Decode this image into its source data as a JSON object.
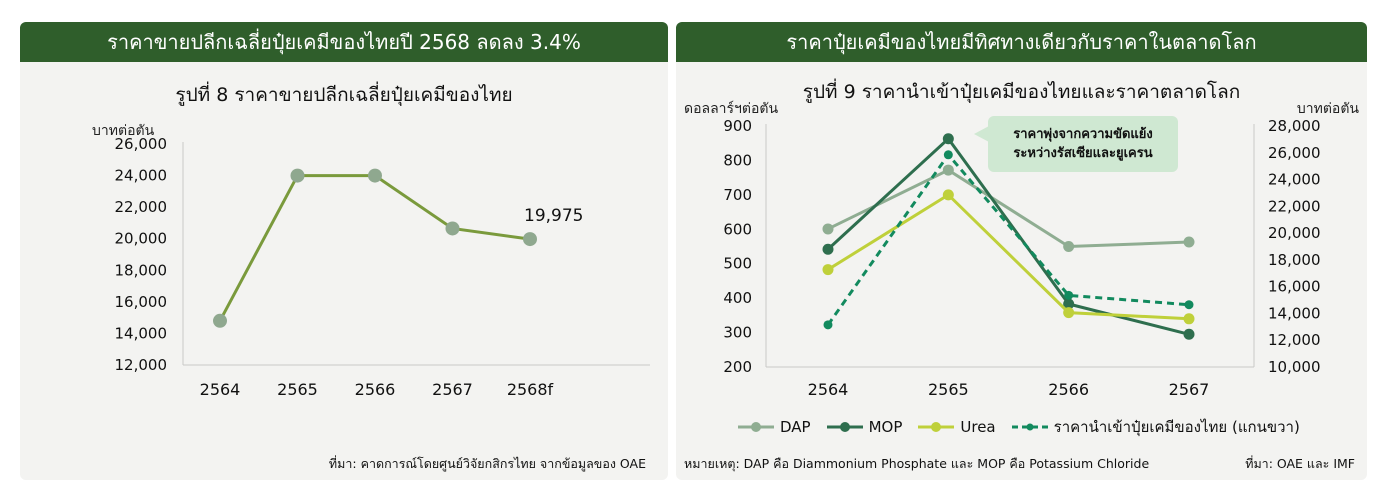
{
  "left_panel": {
    "header": "ราคาขายปลีกเฉลี่ยปุ๋ยเคมีของไทยปี 2568 ลดลง 3.4%",
    "source": "ที่มา: คาดการณ์โดยศูนย์วิจัยกสิกรไทย จากข้อมูลของ OAE"
  },
  "right_panel": {
    "header": "ราคาปุ๋ยเคมีของไทยมีทิศทางเดียวกับราคาในตลาดโลก",
    "callout": [
      "ราคาพุ่งจากความขัดแย้ง",
      "ระหว่างรัสเซียและยูเครน"
    ],
    "note": "หมายเหตุ: DAP คือ Diammonium Phosphate และ MOP คือ Potassium Chloride",
    "source": "ที่มา: OAE และ IMF"
  },
  "chart_data": [
    {
      "type": "line",
      "title": "รูปที่ 8 ราคาขายปลีกเฉลี่ยปุ๋ยเคมีของไทย",
      "ylabel": "บาทต่อตัน",
      "categories": [
        "2564",
        "2565",
        "2566",
        "2567",
        "2568f"
      ],
      "series": [
        {
          "values": [
            14800,
            24000,
            24000,
            20650,
            19975
          ],
          "color": "#7a9a3c",
          "marker_color": "#8fa88f"
        }
      ],
      "data_labels": [
        {
          "index": 4,
          "text": "19,975"
        }
      ],
      "ylim": [
        12000,
        26000
      ],
      "yticks": [
        12000,
        14000,
        16000,
        18000,
        20000,
        22000,
        24000,
        26000
      ],
      "ytick_labels": [
        "12,000",
        "14,000",
        "16,000",
        "18,000",
        "20,000",
        "22,000",
        "24,000",
        "26,000"
      ],
      "grid": false
    },
    {
      "type": "line",
      "title": "รูปที่ 9 ราคานำเข้าปุ๋ยเคมีของไทยและราคาตลาดโลก",
      "ylabel": "ดอลลาร์ฯต่อตัน",
      "ylabel_right": "บาทต่อตัน",
      "categories": [
        "2564",
        "2565",
        "2566",
        "2567"
      ],
      "ylim": [
        200,
        900
      ],
      "yticks": [
        200,
        300,
        400,
        500,
        600,
        700,
        800,
        900
      ],
      "ylim_right": [
        10000,
        28000
      ],
      "yticks_right": [
        10000,
        12000,
        14000,
        16000,
        18000,
        20000,
        22000,
        24000,
        26000,
        28000
      ],
      "ytick_labels_right": [
        "10,000",
        "12,000",
        "14,000",
        "16,000",
        "18,000",
        "20,000",
        "22,000",
        "24,000",
        "26,000",
        "28,000"
      ],
      "series": [
        {
          "name": "DAP",
          "axis": "left",
          "values": [
            601,
            772,
            550,
            563
          ],
          "color": "#8fad92",
          "dash": false
        },
        {
          "name": "MOP",
          "axis": "left",
          "values": [
            542,
            863,
            383,
            295
          ],
          "color": "#2e6e4e",
          "dash": false
        },
        {
          "name": "Urea",
          "axis": "left",
          "values": [
            483,
            700,
            358,
            340
          ],
          "color": "#bfd03a",
          "dash": false
        },
        {
          "name": "ราคานำเข้าปุ๋ยเคมีของไทย (แกนขวา)",
          "axis": "right",
          "values": [
            13150,
            25850,
            15350,
            14650
          ],
          "color": "#128a5e",
          "dash": true
        }
      ],
      "legend_position": "bottom",
      "grid": false
    }
  ]
}
